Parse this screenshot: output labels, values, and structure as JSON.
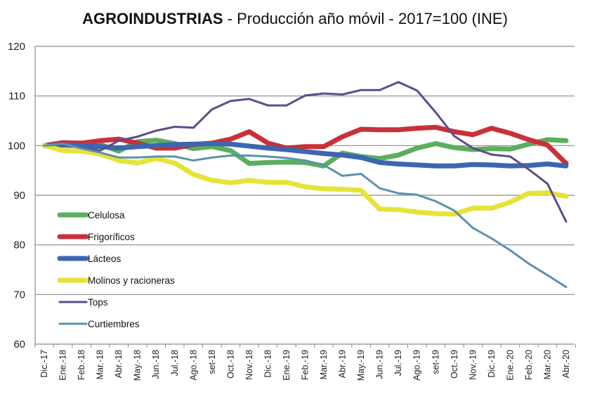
{
  "chart_data": {
    "type": "line",
    "title": "AGROINDUSTRIAS",
    "subtitle": "- Producción año móvil - 2017=100 (INE)",
    "xlabel": "",
    "ylabel": "",
    "ylim": [
      60,
      120
    ],
    "yticks": [
      60,
      70,
      80,
      90,
      100,
      110,
      120
    ],
    "grid": "horizontal",
    "legend_position": "center-left",
    "categories": [
      "Dic.-17",
      "Ene.-18",
      "Feb.-18",
      "Mar.-18",
      "Abr.-18",
      "May.-18",
      "Jun.-18",
      "Jul.-18",
      "Ago.-18",
      "set-18",
      "Oct.-18",
      "Nov.-18",
      "Dic.-18",
      "Ene.-19",
      "Feb.-19",
      "Mar.-19",
      "Abr.-19",
      "May.-19",
      "Jun.-19",
      "Jul.-19",
      "Ago.-19",
      "set-19",
      "Oct.-19",
      "Nov.-19",
      "Dic.-19",
      "Ene.-20",
      "Feb.-20",
      "Mar.-20",
      "Abr.-20"
    ],
    "series": [
      {
        "name": "Celulosa",
        "color": "#5aae5e",
        "weight": "thick",
        "values": [
          100,
          100.4,
          100.3,
          100.2,
          98.9,
          100.8,
          101.1,
          100.4,
          99.4,
          99.8,
          99,
          96.4,
          96.6,
          96.7,
          96.6,
          95.9,
          98.5,
          97.8,
          97.4,
          98.1,
          99.5,
          100.4,
          99.6,
          99.2,
          99.4,
          99.3,
          100.3,
          101.2,
          101
        ]
      },
      {
        "name": "Frigoríficos",
        "color": "#c8313a",
        "weight": "thick",
        "values": [
          100,
          100.6,
          100.5,
          101,
          101.3,
          100.5,
          99.5,
          99.5,
          100.2,
          100.5,
          101.3,
          102.8,
          100.5,
          99.5,
          99.8,
          99.8,
          101.8,
          103.3,
          103.2,
          103.2,
          103.5,
          103.7,
          102.8,
          102.2,
          103.5,
          102.5,
          101.2,
          100.1,
          96.4
        ]
      },
      {
        "name": "Lácteos",
        "color": "#3c66b0",
        "weight": "thick",
        "values": [
          100,
          100.1,
          100,
          99.8,
          99.5,
          99.8,
          100,
          100.2,
          100.3,
          100.4,
          100.3,
          99.9,
          99.5,
          99.2,
          98.8,
          98.4,
          98.1,
          97.6,
          96.6,
          96.3,
          96.1,
          95.9,
          95.9,
          96.2,
          96.1,
          95.9,
          96,
          96.3,
          95.9
        ]
      },
      {
        "name": "Molinos y racioneras",
        "color": "#e6e33a",
        "weight": "thick",
        "values": [
          100,
          99,
          98.9,
          98.3,
          97,
          96.5,
          97.4,
          96.5,
          94.2,
          93,
          92.5,
          93,
          92.6,
          92.6,
          91.7,
          91.3,
          91.2,
          91,
          87.2,
          87.1,
          86.6,
          86.3,
          86.2,
          87.4,
          87.4,
          88.6,
          90.4,
          90.5,
          89.8
        ]
      },
      {
        "name": "Tops",
        "color": "#5f4b8b",
        "weight": "thin",
        "values": [
          100,
          100.2,
          99.5,
          99,
          101,
          101.8,
          103,
          103.8,
          103.6,
          107.3,
          109,
          109.4,
          108.1,
          108.1,
          110.1,
          110.5,
          110.3,
          111.2,
          111.2,
          112.8,
          111.1,
          106.7,
          101.9,
          99.5,
          98.2,
          97.8,
          95.2,
          92.3,
          84.7
        ]
      },
      {
        "name": "Curtiembres",
        "color": "#5b93ad",
        "weight": "thin",
        "values": [
          100,
          100.4,
          99.4,
          98.6,
          97.6,
          97.6,
          97.8,
          97.8,
          97,
          97.6,
          98,
          98,
          97.8,
          97.5,
          97,
          96.1,
          93.9,
          94.3,
          91.4,
          90.4,
          90.1,
          88.8,
          86.9,
          83.4,
          81.3,
          78.9,
          76.2,
          73.9,
          71.5
        ]
      }
    ]
  }
}
